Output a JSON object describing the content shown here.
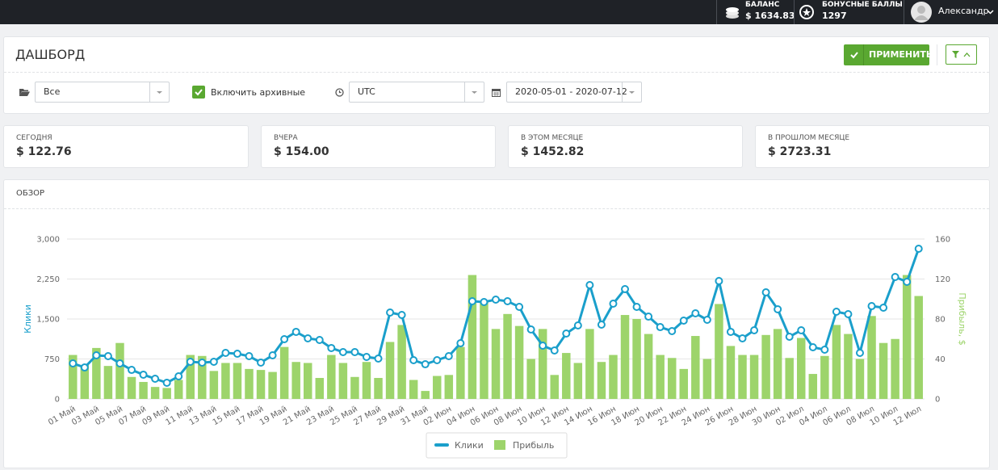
{
  "topbar": {
    "balance_label": "БАЛАНС",
    "balance": "$ 1634.83",
    "bonus_label": "БОНУСНЫЕ БАЛЛЫ",
    "bonus": "1297",
    "user": "Александр"
  },
  "header": {
    "title": "ДАШБОРД",
    "apply": "ПРИМЕНИТЬ"
  },
  "filters": {
    "group": "Все",
    "archive": "Включить архивные",
    "timezone": "UTC",
    "period": "2020-05-01 - 2020-07-12"
  },
  "stats": [
    {
      "label": "СЕГОДНЯ",
      "value": "$ 122.76"
    },
    {
      "label": "ВЧЕРА",
      "value": "$ 154.00"
    },
    {
      "label": "В ЭТОМ МЕСЯЦЕ",
      "value": "$ 1452.82"
    },
    {
      "label": "В ПРОШЛОМ МЕСЯЦЕ",
      "value": "$ 2723.31"
    }
  ],
  "overview": {
    "title": "ОБЗОР"
  },
  "chart_data": {
    "type": "combo",
    "categories": [
      "01 Май",
      null,
      "03 Май",
      null,
      "05 Май",
      null,
      "07 Май",
      null,
      "09 Май",
      null,
      "11 Май",
      null,
      "13 Май",
      null,
      "15 Май",
      null,
      "17 Май",
      null,
      "19 Май",
      null,
      "21 Май",
      null,
      "23 Май",
      null,
      "25 Май",
      null,
      "27 Май",
      null,
      "29 Май",
      null,
      "31 Май",
      null,
      "02 Июн",
      null,
      "04 Июн",
      null,
      "06 Июн",
      null,
      "08 Июн",
      null,
      "10 Июн",
      null,
      "12 Июн",
      null,
      "14 Июн",
      null,
      "16 Июн",
      null,
      "18 Июн",
      null,
      "20 Июн",
      null,
      "22 Июн",
      null,
      "24 Июн",
      null,
      "26 Июн",
      null,
      "28 Июн",
      null,
      "30 Июн",
      null,
      "02 Июл",
      null,
      "04 Июл",
      null,
      "06 Июл",
      null,
      "08 Июл",
      null,
      "10 Июл",
      null,
      "12 Июл"
    ],
    "series": [
      {
        "name": "Клики",
        "type": "line",
        "axis": "y",
        "color": "#1a9fcb",
        "values": [
          667,
          590,
          818,
          803,
          667,
          545,
          455,
          379,
          303,
          424,
          697,
          682,
          697,
          864,
          848,
          803,
          682,
          818,
          1121,
          1258,
          1136,
          1106,
          955,
          879,
          879,
          788,
          758,
          1621,
          1576,
          727,
          651,
          727,
          803,
          1045,
          1833,
          1818,
          1864,
          1833,
          1727,
          1303,
          1000,
          909,
          1227,
          1379,
          2136,
          1394,
          1788,
          2061,
          1727,
          1545,
          1348,
          1273,
          1470,
          1606,
          1485,
          2212,
          1258,
          1136,
          1288,
          2000,
          1682,
          1167,
          1288,
          970,
          924,
          1636,
          1591,
          864,
          1742,
          1712,
          2288,
          2197,
          2818
        ]
      },
      {
        "name": "Прибыль",
        "type": "bar",
        "axis": "y2",
        "color": "#9dd46b",
        "values": [
          44,
          34,
          51,
          33,
          56,
          22,
          17,
          12,
          11,
          19,
          44,
          43,
          28,
          36,
          36,
          30,
          29,
          27,
          52,
          37,
          36,
          21,
          44,
          36,
          22,
          37,
          21,
          57,
          74,
          19,
          8,
          23,
          24,
          52,
          124,
          98,
          70,
          85,
          73,
          40,
          70,
          24,
          46,
          36,
          70,
          37,
          44,
          84,
          80,
          65,
          44,
          41,
          30,
          63,
          40,
          95,
          53,
          44,
          44,
          64,
          70,
          41,
          61,
          25,
          43,
          74,
          65,
          40,
          83,
          56,
          60,
          124,
          103
        ]
      }
    ],
    "ylabel": "Клики",
    "y2label": "Прибыль, $",
    "ylim": [
      0,
      3000
    ],
    "yticks": [
      0,
      750,
      {
        "value": 1500,
        "label": "1,500"
      },
      {
        "value": 2250,
        "label": "2,250"
      },
      {
        "value": 3000,
        "label": "3,000"
      }
    ],
    "y2lim": [
      0,
      160
    ],
    "y2ticks": [
      0,
      40,
      80,
      120,
      160
    ],
    "grid": true,
    "legend": "bottom"
  }
}
